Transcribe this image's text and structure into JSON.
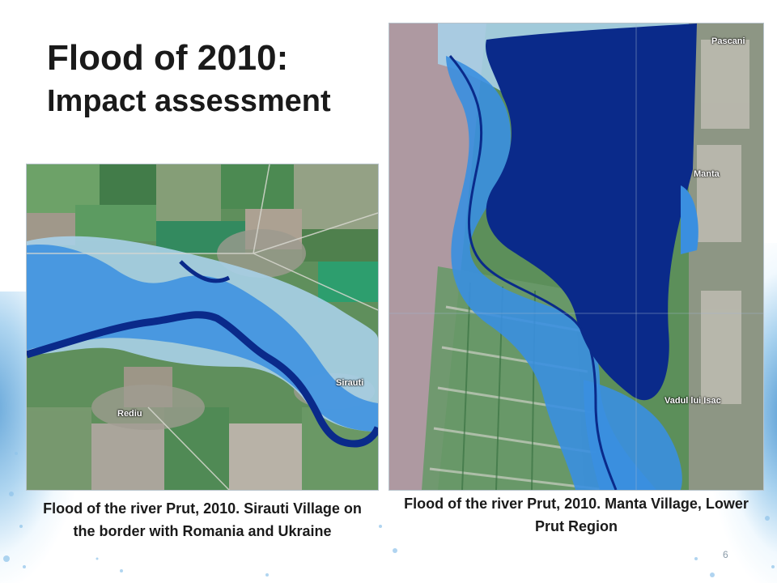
{
  "slide": {
    "title_line1": "Flood of 2010:",
    "title_line2": "Impact assessment",
    "page_number": "6"
  },
  "left_image": {
    "caption": "Flood of the river Prut, 2010. Sirauti Village on the border with Romania and Ukraine",
    "labels": {
      "sirauti": "Sirauti",
      "rediu": "Rediu"
    }
  },
  "right_image": {
    "caption": "Flood of the river Prut, 2010. Manta Village, Lower Prut Region",
    "labels": {
      "pascani": "Pascani",
      "manta": "Manta",
      "vadul": "Vadul lui Isac"
    }
  },
  "colors": {
    "flood_dark": "#0a2a8a",
    "flood_light": "#3a8fe0",
    "flood_pale": "#a8d0e8",
    "land_green": "#4f8f55"
  }
}
